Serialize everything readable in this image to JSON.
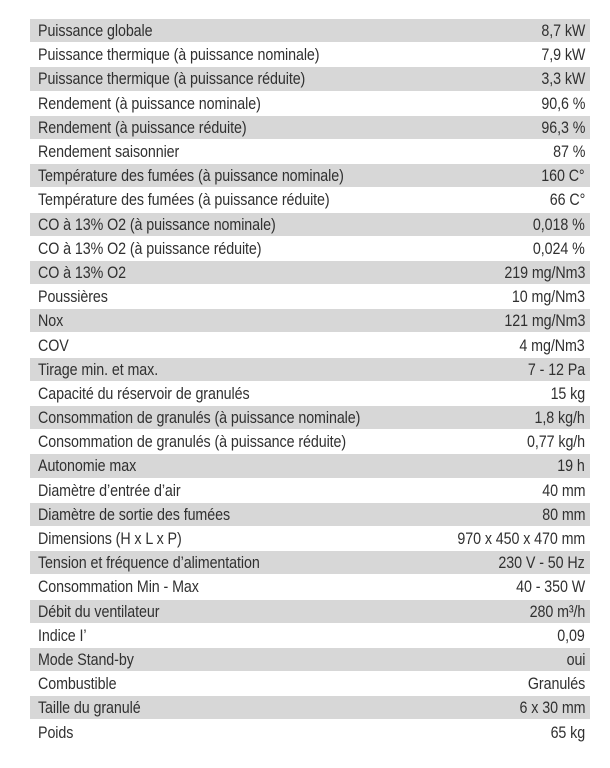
{
  "page": {
    "background": "#ffffff"
  },
  "table": {
    "stripe_color": "#d7d7d7",
    "text_color": "#303030",
    "rows": [
      {
        "label": "Puissance globale",
        "value": "8,7 kW"
      },
      {
        "label": "Puissance thermique (à puissance nominale)",
        "value": "7,9 kW"
      },
      {
        "label": "Puissance thermique (à puissance réduite)",
        "value": "3,3 kW"
      },
      {
        "label": "Rendement (à puissance nominale)",
        "value": "90,6 %"
      },
      {
        "label": "Rendement (à puissance réduite)",
        "value": "96,3 %"
      },
      {
        "label": "Rendement saisonnier",
        "value": "87 %"
      },
      {
        "label": "Température des fumées (à puissance nominale)",
        "value": "160 C°"
      },
      {
        "label": "Température des fumées (à puissance réduite)",
        "value": "66 C°"
      },
      {
        "label": "CO à 13% O2 (à puissance nominale)",
        "value": "0,018 %"
      },
      {
        "label": "CO à 13% O2 (à puissance réduite)",
        "value": "0,024 %"
      },
      {
        "label": "CO à 13% O2",
        "value": "219 mg/Nm3"
      },
      {
        "label": "Poussières",
        "value": "10 mg/Nm3"
      },
      {
        "label": "Nox",
        "value": "121 mg/Nm3"
      },
      {
        "label": "COV",
        "value": "4 mg/Nm3"
      },
      {
        "label": "Tirage min. et max.",
        "value": "7 - 12 Pa"
      },
      {
        "label": "Capacité du réservoir de granulés",
        "value": "15 kg"
      },
      {
        "label": "Consommation de granulés (à puissance nominale)",
        "value": "1,8 kg/h"
      },
      {
        "label": "Consommation de granulés (à puissance réduite)",
        "value": "0,77 kg/h"
      },
      {
        "label": "Autonomie max",
        "value": "19 h"
      },
      {
        "label": "Diamètre d’entrée d’air",
        "value": "40 mm"
      },
      {
        "label": "Diamètre de sortie des fumées",
        "value": "80 mm"
      },
      {
        "label": "Dimensions (H x L x P)",
        "value": "970 x 450 x 470 mm"
      },
      {
        "label": "Tension et fréquence d’alimentation",
        "value": "230 V - 50 Hz"
      },
      {
        "label": "Consommation Min - Max",
        "value": "40 - 350 W"
      },
      {
        "label": "Débit du ventilateur",
        "value": "280 m³/h"
      },
      {
        "label": "Indice I’",
        "value": "0,09"
      },
      {
        "label": "Mode Stand-by",
        "value": "oui"
      },
      {
        "label": "Combustible",
        "value": "Granulés"
      },
      {
        "label": "Taille du granulé",
        "value": "6 x 30 mm"
      },
      {
        "label": "Poids",
        "value": "65 kg"
      }
    ]
  }
}
